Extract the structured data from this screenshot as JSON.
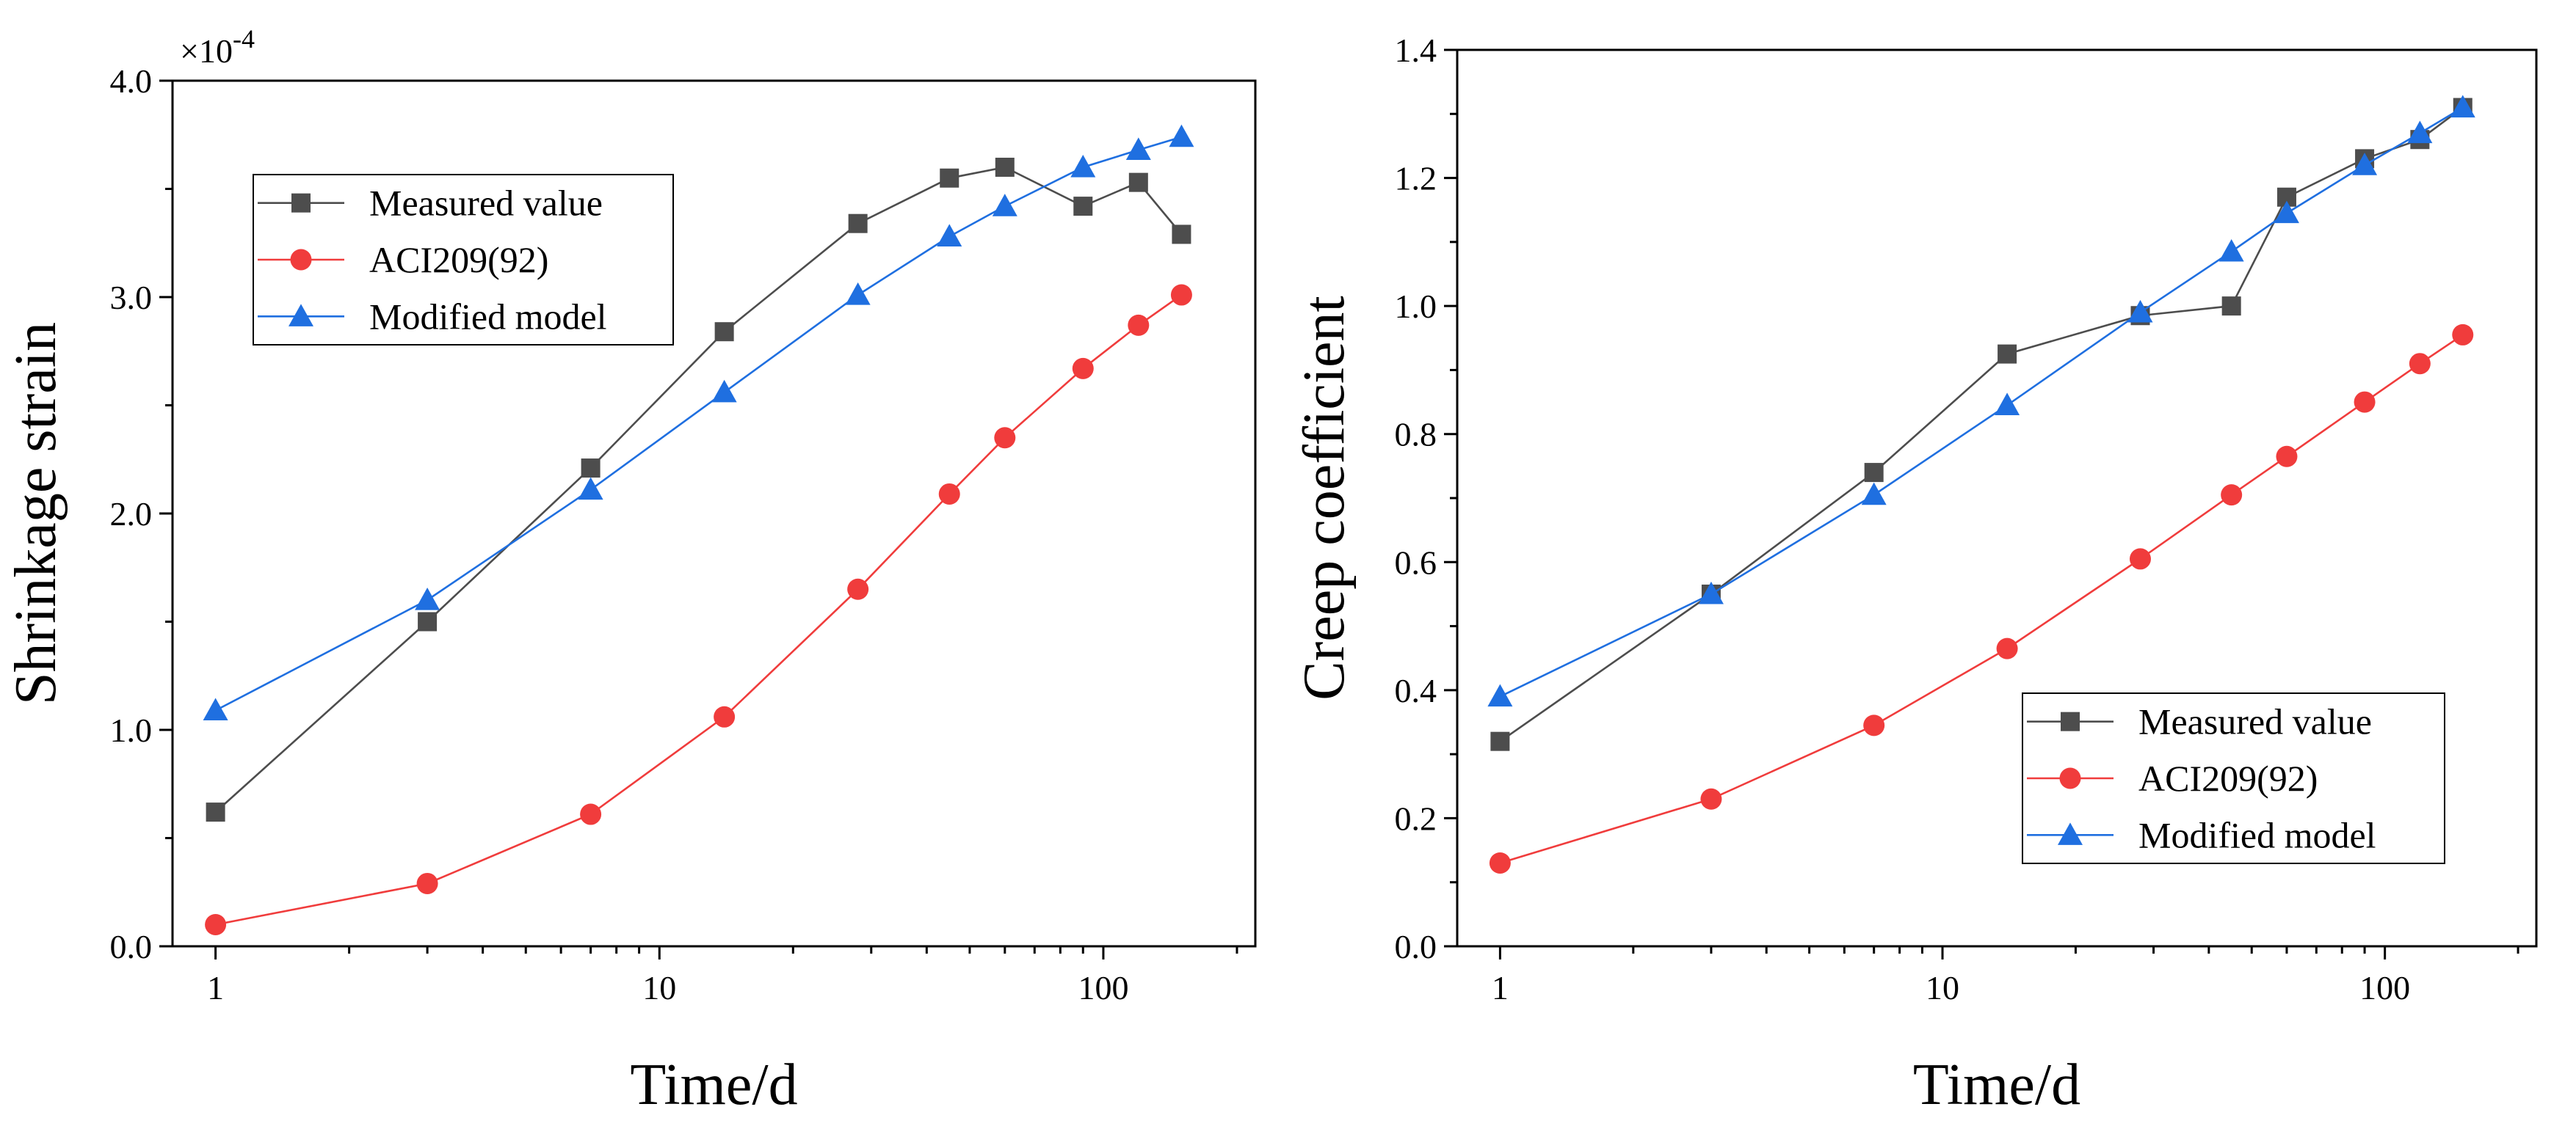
{
  "chart_data": [
    {
      "type": "line",
      "xscale": "log",
      "x": [
        1,
        3,
        7,
        14,
        28,
        45,
        60,
        90,
        120,
        150
      ],
      "xlim": [
        0.8,
        220
      ],
      "xticks": [
        1,
        10,
        100
      ],
      "xtick_labels": [
        "1",
        "10",
        "100"
      ],
      "ylim": [
        0,
        4.0
      ],
      "yticks": [
        0,
        1,
        2,
        3,
        4
      ],
      "ytick_labels": [
        "0.0",
        "1.0",
        "2.0",
        "3.0",
        "4.0"
      ],
      "multiplier_label": "×10",
      "multiplier_exp": "-4",
      "xlabel": "Time/d",
      "ylabel": "Shrinkage strain",
      "legend_position": "upper-left",
      "series": [
        {
          "name": "Measured value",
          "color": "#4d4d4d",
          "marker": "square",
          "values": [
            0.62,
            1.5,
            2.21,
            2.84,
            3.34,
            3.55,
            3.6,
            3.42,
            3.53,
            3.29
          ]
        },
        {
          "name": "ACI209(92)",
          "color": "#f03c3c",
          "marker": "circle",
          "values": [
            0.1,
            0.29,
            0.61,
            1.06,
            1.65,
            2.09,
            2.35,
            2.67,
            2.87,
            3.01
          ]
        },
        {
          "name": "Modified model",
          "color": "#1f6fe0",
          "marker": "triangle",
          "values": [
            1.09,
            1.6,
            2.11,
            2.56,
            3.01,
            3.28,
            3.42,
            3.6,
            3.68,
            3.74
          ]
        }
      ]
    },
    {
      "type": "line",
      "xscale": "log",
      "x": [
        1,
        3,
        7,
        14,
        28,
        45,
        60,
        90,
        120,
        150
      ],
      "xlim": [
        0.8,
        220
      ],
      "xticks": [
        1,
        10,
        100
      ],
      "xtick_labels": [
        "1",
        "10",
        "100"
      ],
      "ylim": [
        0,
        1.4
      ],
      "yticks": [
        0,
        0.2,
        0.4,
        0.6,
        0.8,
        1.0,
        1.2,
        1.4
      ],
      "ytick_labels": [
        "0.0",
        "0.2",
        "0.4",
        "0.6",
        "0.8",
        "1.0",
        "1.2",
        "1.4"
      ],
      "xlabel": "Time/d",
      "ylabel": "Creep coefficient",
      "legend_position": "lower-right",
      "series": [
        {
          "name": "Measured value",
          "color": "#4d4d4d",
          "marker": "square",
          "values": [
            0.32,
            0.55,
            0.74,
            0.925,
            0.985,
            1.0,
            1.17,
            1.23,
            1.26,
            1.31
          ]
        },
        {
          "name": "ACI209(92)",
          "color": "#f03c3c",
          "marker": "circle",
          "values": [
            0.13,
            0.23,
            0.345,
            0.465,
            0.605,
            0.705,
            0.765,
            0.85,
            0.91,
            0.955
          ]
        },
        {
          "name": "Modified model",
          "color": "#1f6fe0",
          "marker": "triangle",
          "values": [
            0.39,
            0.55,
            0.705,
            0.845,
            0.99,
            1.085,
            1.145,
            1.22,
            1.27,
            1.31
          ]
        }
      ]
    }
  ]
}
